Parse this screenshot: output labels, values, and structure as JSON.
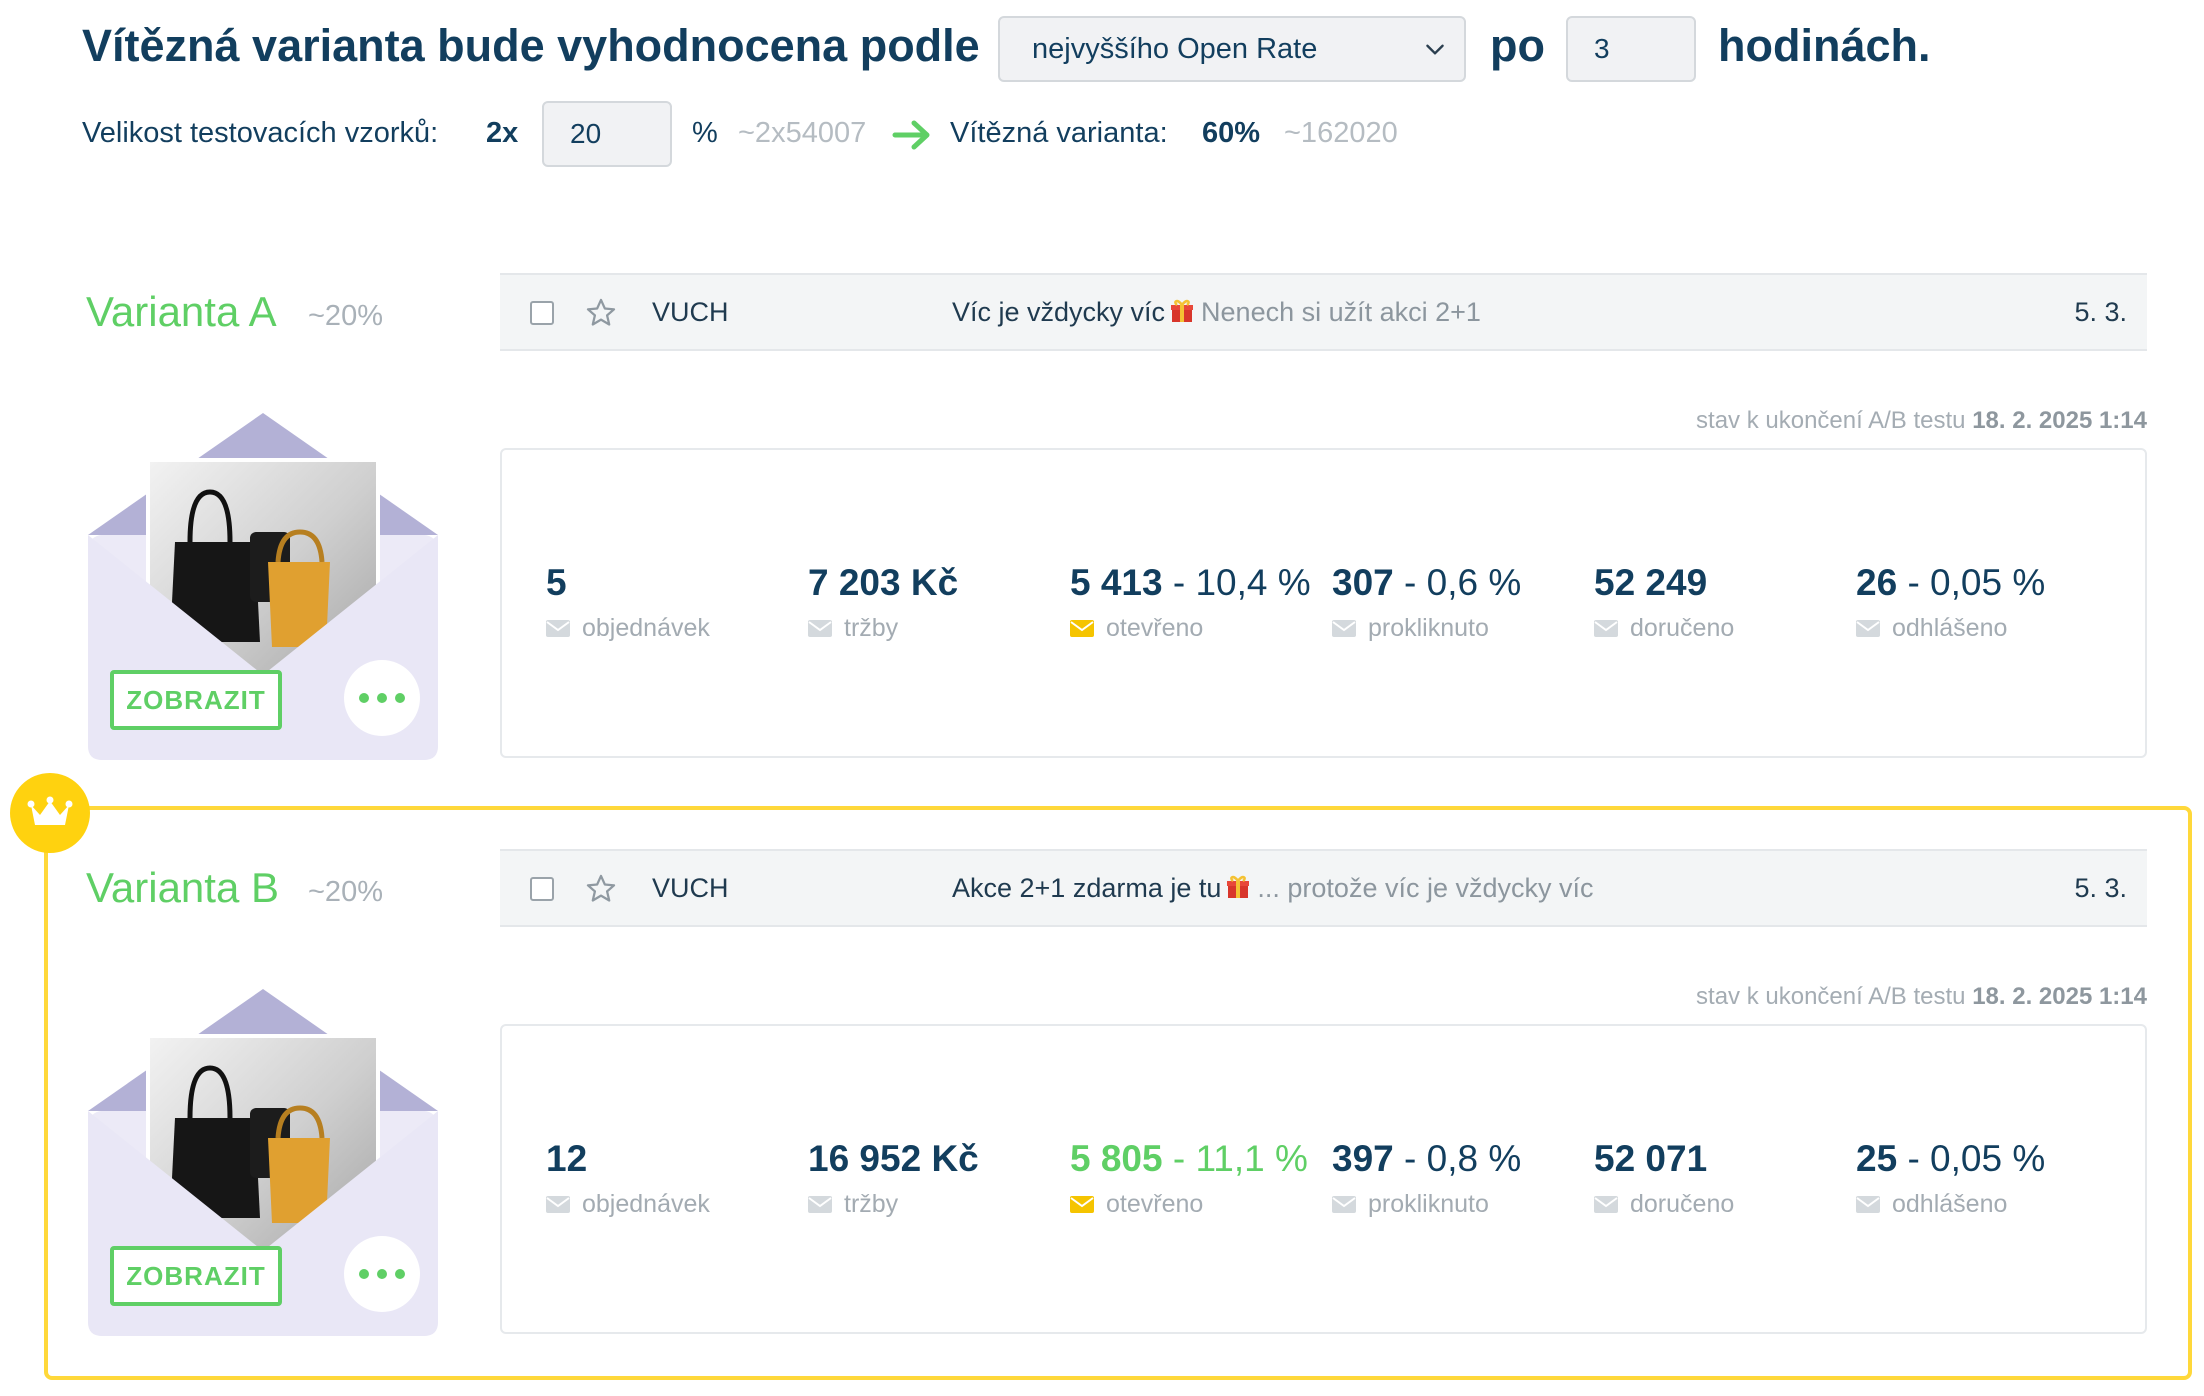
{
  "header": {
    "title_pre": "Vítězná varianta bude vyhodnocena podle",
    "criterion_selected": "nejvyššího Open Rate",
    "word_po": "po",
    "hours_value": "3",
    "title_post": "hodinách.",
    "sample_label": "Velikost testovacích vzorků:",
    "sample_multiplier": "2x",
    "sample_percent_value": "20",
    "percent_sign": "%",
    "sample_count": "~2x54007",
    "winner_label": "Vítězná varianta:",
    "winner_percent": "60%",
    "winner_count": "~162020"
  },
  "variants": [
    {
      "name": "Varianta A",
      "share": "~20%",
      "sender": "VUCH",
      "subject": "Víc je vždycky víc",
      "preview": "Nenech si užít akci 2+1",
      "date": "5. 3.",
      "status_label": "stav k ukončení A/B testu",
      "status_datetime": "18. 2. 2025 1:14",
      "show_button": "ZOBRAZIT",
      "stats": {
        "orders": {
          "value": "5",
          "label": "objednávek"
        },
        "revenue": {
          "value": "7 203 Kč",
          "label": "tržby"
        },
        "opened": {
          "value": "5 413",
          "rate": "- 10,4 %",
          "label": "otevřeno"
        },
        "clicked": {
          "value": "307",
          "rate": "- 0,6 %",
          "label": "prokliknuto"
        },
        "delivered": {
          "value": "52 249",
          "label": "doručeno"
        },
        "unsubscribed": {
          "value": "26",
          "rate": "- 0,05 %",
          "label": "odhlášeno"
        }
      }
    },
    {
      "name": "Varianta B",
      "share": "~20%",
      "sender": "VUCH",
      "subject": "Akce 2+1 zdarma je tu",
      "preview": "... protože víc je vždycky víc",
      "date": "5. 3.",
      "status_label": "stav k ukončení A/B testu",
      "status_datetime": "18. 2. 2025 1:14",
      "show_button": "ZOBRAZIT",
      "stats": {
        "orders": {
          "value": "12",
          "label": "objednávek"
        },
        "revenue": {
          "value": "16 952 Kč",
          "label": "tržby"
        },
        "opened": {
          "value": "5 805",
          "rate": "- 11,1 %",
          "label": "otevřeno"
        },
        "clicked": {
          "value": "397",
          "rate": "- 0,8 %",
          "label": "prokliknuto"
        },
        "delivered": {
          "value": "52 071",
          "label": "doručeno"
        },
        "unsubscribed": {
          "value": "25",
          "rate": "- 0,05 %",
          "label": "odhlášeno"
        }
      }
    }
  ],
  "colors": {
    "accent_green": "#5fcf65",
    "winner_yellow": "#ffd83a",
    "text_navy": "#123e5e",
    "envelope_lavender": "#b3b1d6"
  },
  "icons": [
    "chevron-down-icon",
    "arrow-right-icon",
    "star-icon",
    "gift-icon",
    "envelope-icon",
    "crown-icon",
    "more-dots-icon",
    "bags-image"
  ]
}
